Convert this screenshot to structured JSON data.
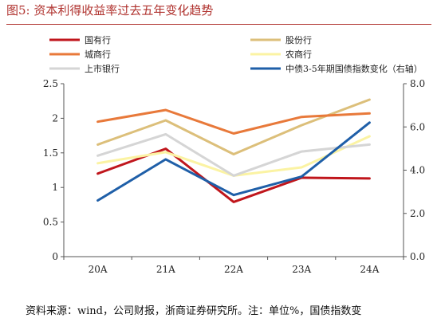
{
  "figure": {
    "title": "图5:   资本利得收益率过去五年变化趋势",
    "source": "资料来源：wind，公司财报，浙商证券研究所。注：单位%，国债指数变"
  },
  "chart_data": {
    "type": "line",
    "categories": [
      "20A",
      "21A",
      "22A",
      "23A",
      "24A"
    ],
    "ylim": [
      0,
      2.5
    ],
    "yticks": [
      "0",
      "0.5",
      "1",
      "1.5",
      "2",
      "2.5"
    ],
    "y2lim": [
      0,
      8
    ],
    "y2ticks": [
      "0.0",
      "2.0",
      "4.0",
      "6.0",
      "8.0"
    ],
    "legend_position": "top",
    "series": [
      {
        "name": "国有行",
        "axis": "left",
        "color": "#c0161c",
        "values": [
          1.2,
          1.56,
          0.79,
          1.14,
          1.13
        ]
      },
      {
        "name": "股份行",
        "axis": "left",
        "color": "#dcbf7a",
        "values": [
          1.62,
          1.97,
          1.48,
          1.9,
          2.27
        ]
      },
      {
        "name": "城商行",
        "axis": "left",
        "color": "#e8793a",
        "values": [
          1.95,
          2.12,
          1.78,
          2.02,
          2.07
        ]
      },
      {
        "name": "农商行",
        "axis": "left",
        "color": "#fbf3a3",
        "values": [
          1.35,
          1.51,
          1.17,
          1.29,
          1.74
        ]
      },
      {
        "name": "上市银行",
        "axis": "left",
        "color": "#d5d5d5",
        "values": [
          1.46,
          1.77,
          1.17,
          1.52,
          1.62
        ]
      },
      {
        "name": "中债3-5年期国债指数变化（右轴）",
        "axis": "right",
        "color": "#1f5fa8",
        "values": [
          2.6,
          4.5,
          2.85,
          3.7,
          6.2
        ]
      }
    ]
  }
}
